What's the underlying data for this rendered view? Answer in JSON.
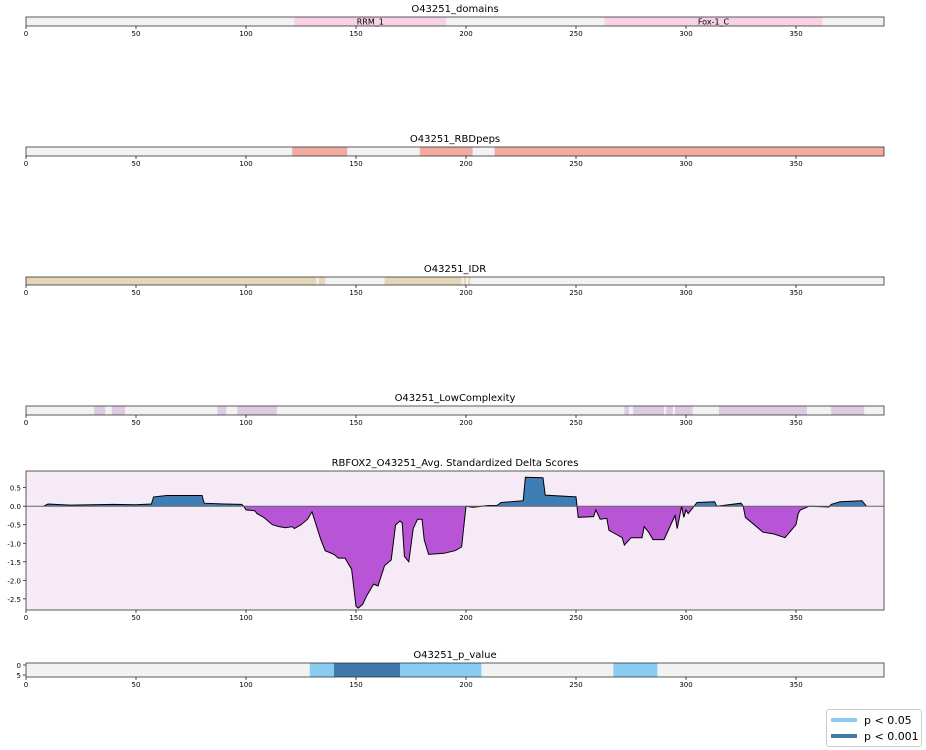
{
  "chart_data": [
    {
      "type": "track",
      "title": "O43251_domains",
      "xlim": [
        0,
        390
      ],
      "xticks": [
        0,
        50,
        100,
        150,
        200,
        250,
        300,
        350
      ],
      "color": "#f7d1e6",
      "regions": [
        {
          "start": 122,
          "end": 191,
          "label": "RRM_1"
        },
        {
          "start": 263,
          "end": 362,
          "label": "Fox-1_C"
        }
      ]
    },
    {
      "type": "track",
      "title": "O43251_RBDpeps",
      "xlim": [
        0,
        390
      ],
      "xticks": [
        0,
        50,
        100,
        150,
        200,
        250,
        300,
        350
      ],
      "color": "#f2aaa1",
      "regions": [
        {
          "start": 121,
          "end": 146
        },
        {
          "start": 179,
          "end": 203
        },
        {
          "start": 213,
          "end": 390
        }
      ]
    },
    {
      "type": "track",
      "title": "O43251_IDR",
      "xlim": [
        0,
        390
      ],
      "xticks": [
        0,
        50,
        100,
        150,
        200,
        250,
        300,
        350
      ],
      "color": "#e6d6b9",
      "regions": [
        {
          "start": 0,
          "end": 132
        },
        {
          "start": 133,
          "end": 136
        },
        {
          "start": 163,
          "end": 198
        },
        {
          "start": 199,
          "end": 200
        },
        {
          "start": 201,
          "end": 202
        }
      ]
    },
    {
      "type": "track",
      "title": "O43251_LowComplexity",
      "xlim": [
        0,
        390
      ],
      "xticks": [
        0,
        50,
        100,
        150,
        200,
        250,
        300,
        350
      ],
      "color": "#dccbe3",
      "regions": [
        {
          "start": 31,
          "end": 36
        },
        {
          "start": 39,
          "end": 45
        },
        {
          "start": 87,
          "end": 91
        },
        {
          "start": 96,
          "end": 114
        },
        {
          "start": 272,
          "end": 274
        },
        {
          "start": 276,
          "end": 290
        },
        {
          "start": 291,
          "end": 294
        },
        {
          "start": 295,
          "end": 303
        },
        {
          "start": 315,
          "end": 355
        },
        {
          "start": 366,
          "end": 381
        }
      ]
    },
    {
      "type": "area",
      "title": "RBFOX2_O43251_Avg. Standardized Delta Scores",
      "xlim": [
        0,
        390
      ],
      "ylim": [
        -2.8,
        0.95
      ],
      "xticks": [
        0,
        50,
        100,
        150,
        200,
        250,
        300,
        350
      ],
      "yticks": [
        0.5,
        0.0,
        -0.5,
        -1.0,
        -1.5,
        -2.0,
        -2.5
      ],
      "ytick_labels": [
        "0.5",
        "0.0",
        "-0.5",
        "-1.0",
        "-1.5",
        "-2.0",
        "-2.5"
      ],
      "background": "#f7eaf7",
      "positive_color": "#3f7db6",
      "negative_color": "#b855d6",
      "x": [
        8,
        10,
        20,
        40,
        50,
        57,
        58,
        64,
        80,
        81,
        90,
        98,
        99,
        100,
        104,
        105,
        108,
        110,
        112,
        115,
        118,
        121,
        122,
        125,
        128,
        130,
        134,
        136,
        138,
        140,
        142,
        145,
        148,
        150,
        151,
        153,
        155,
        158,
        160,
        163,
        166,
        168,
        170,
        171,
        172,
        174,
        176,
        178,
        180,
        181,
        183,
        190,
        195,
        198,
        200,
        203,
        206,
        210,
        214,
        216,
        226,
        227,
        235,
        236,
        250,
        251,
        258,
        259,
        261,
        264,
        265,
        268,
        271,
        272,
        275,
        280,
        281,
        283,
        285,
        290,
        295,
        296,
        298,
        299,
        300,
        301,
        305,
        313,
        314,
        325,
        326,
        327,
        335,
        340,
        345,
        350,
        351,
        352,
        356,
        365,
        366,
        370,
        380,
        382
      ],
      "y": [
        0.0,
        0.06,
        0.03,
        0.05,
        0.04,
        0.06,
        0.25,
        0.29,
        0.29,
        0.08,
        0.06,
        0.05,
        0.0,
        -0.1,
        -0.12,
        -0.2,
        -0.3,
        -0.4,
        -0.5,
        -0.55,
        -0.58,
        -0.55,
        -0.6,
        -0.5,
        -0.35,
        -0.15,
        -0.9,
        -1.2,
        -1.25,
        -1.3,
        -1.4,
        -1.4,
        -1.7,
        -2.7,
        -2.75,
        -2.65,
        -2.4,
        -2.1,
        -2.15,
        -1.6,
        -1.45,
        -0.5,
        -0.4,
        -0.45,
        -1.35,
        -1.5,
        -0.6,
        -0.35,
        -0.35,
        -0.9,
        -1.3,
        -1.27,
        -1.2,
        -1.1,
        0.0,
        -0.03,
        -0.01,
        0.02,
        0.02,
        0.1,
        0.15,
        0.78,
        0.77,
        0.3,
        0.25,
        -0.3,
        -0.28,
        -0.1,
        -0.35,
        -0.33,
        -0.65,
        -0.75,
        -0.85,
        -1.05,
        -0.85,
        -0.85,
        -0.55,
        -0.7,
        -0.9,
        -0.9,
        -0.25,
        -0.6,
        0.0,
        -0.3,
        -0.1,
        -0.2,
        0.1,
        0.12,
        0.0,
        0.08,
        0.0,
        -0.3,
        -0.7,
        -0.75,
        -0.85,
        -0.5,
        -0.2,
        -0.1,
        0.0,
        -0.02,
        0.05,
        0.12,
        0.15,
        0.0
      ]
    },
    {
      "type": "track",
      "title": "O43251_p_value",
      "xlim": [
        0,
        390
      ],
      "xticks": [
        0,
        50,
        100,
        150,
        200,
        250,
        300,
        350
      ],
      "yticks": [
        0,
        5
      ],
      "regions": [
        {
          "start": 129,
          "end": 140,
          "significance": "p < 0.05",
          "color": "#88ccf1"
        },
        {
          "start": 140,
          "end": 170,
          "significance": "p < 0.001",
          "color": "#3f78aa"
        },
        {
          "start": 170,
          "end": 207,
          "significance": "p < 0.05",
          "color": "#88ccf1"
        },
        {
          "start": 267,
          "end": 287,
          "significance": "p < 0.05",
          "color": "#88ccf1"
        }
      ]
    }
  ],
  "legend": {
    "items": [
      {
        "label": "p < 0.05",
        "color": "#88ccf1"
      },
      {
        "label": "p < 0.001",
        "color": "#3f78aa"
      }
    ],
    "placement": "bottom-right"
  }
}
